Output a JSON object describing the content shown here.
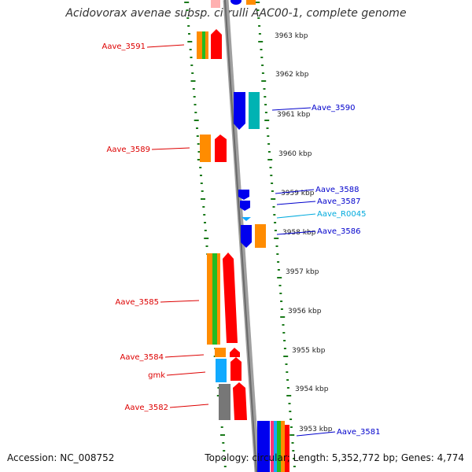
{
  "title": "Acidovorax avenae subsp. citrulli AAC00-1, complete genome",
  "accession": "Accession: NC_008752",
  "summary": "Topology: circular; Length: 5,352,772 bp; Genes: 4,774",
  "colors": {
    "ruler": "#1a7a1a",
    "backbone": "#8a8a8a",
    "gene_red": "#ff0000",
    "gene_orange": "#ff8c00",
    "gene_green": "#22bb22",
    "gene_blue": "#0000ee",
    "gene_cyan": "#00b3b3",
    "gene_lightblue": "#11aaff",
    "gene_gray": "#777777",
    "label_red": "#dd0000",
    "label_blue": "#0000cc",
    "label_cyan": "#00aadd"
  },
  "kbp_ticks": [
    "3963 kbp",
    "3962 kbp",
    "3961 kbp",
    "3960 kbp",
    "3959 kbp",
    "3958 kbp",
    "3957 kbp",
    "3956 kbp",
    "3955 kbp",
    "3954 kbp",
    "3953 kbp"
  ],
  "left_labels": [
    "Aave_3591",
    "Aave_3589",
    "Aave_3585",
    "Aave_3584",
    "gmk",
    "Aave_3582"
  ],
  "right_labels": [
    "Aave_3590",
    "Aave_3588",
    "Aave_3587",
    "Aave_R0045",
    "Aave_3586",
    "Aave_3581"
  ]
}
